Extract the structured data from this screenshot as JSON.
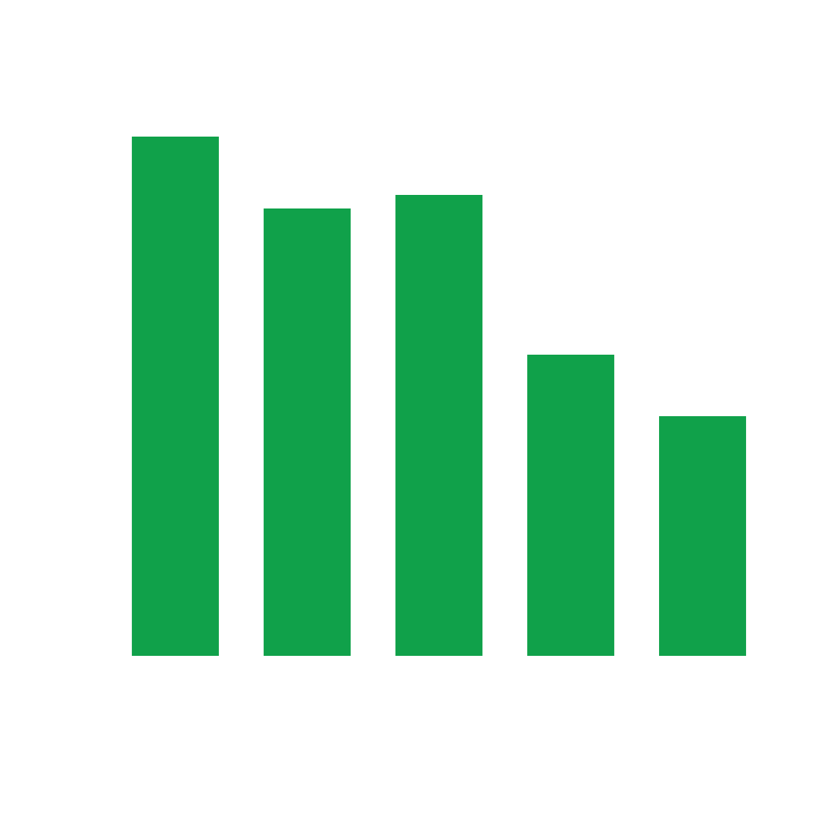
{
  "chart_data": {
    "type": "bar",
    "categories": [
      null,
      null,
      null,
      null,
      null
    ],
    "values": [
      650,
      560,
      577,
      377,
      300
    ],
    "color": "#10a14a"
  }
}
